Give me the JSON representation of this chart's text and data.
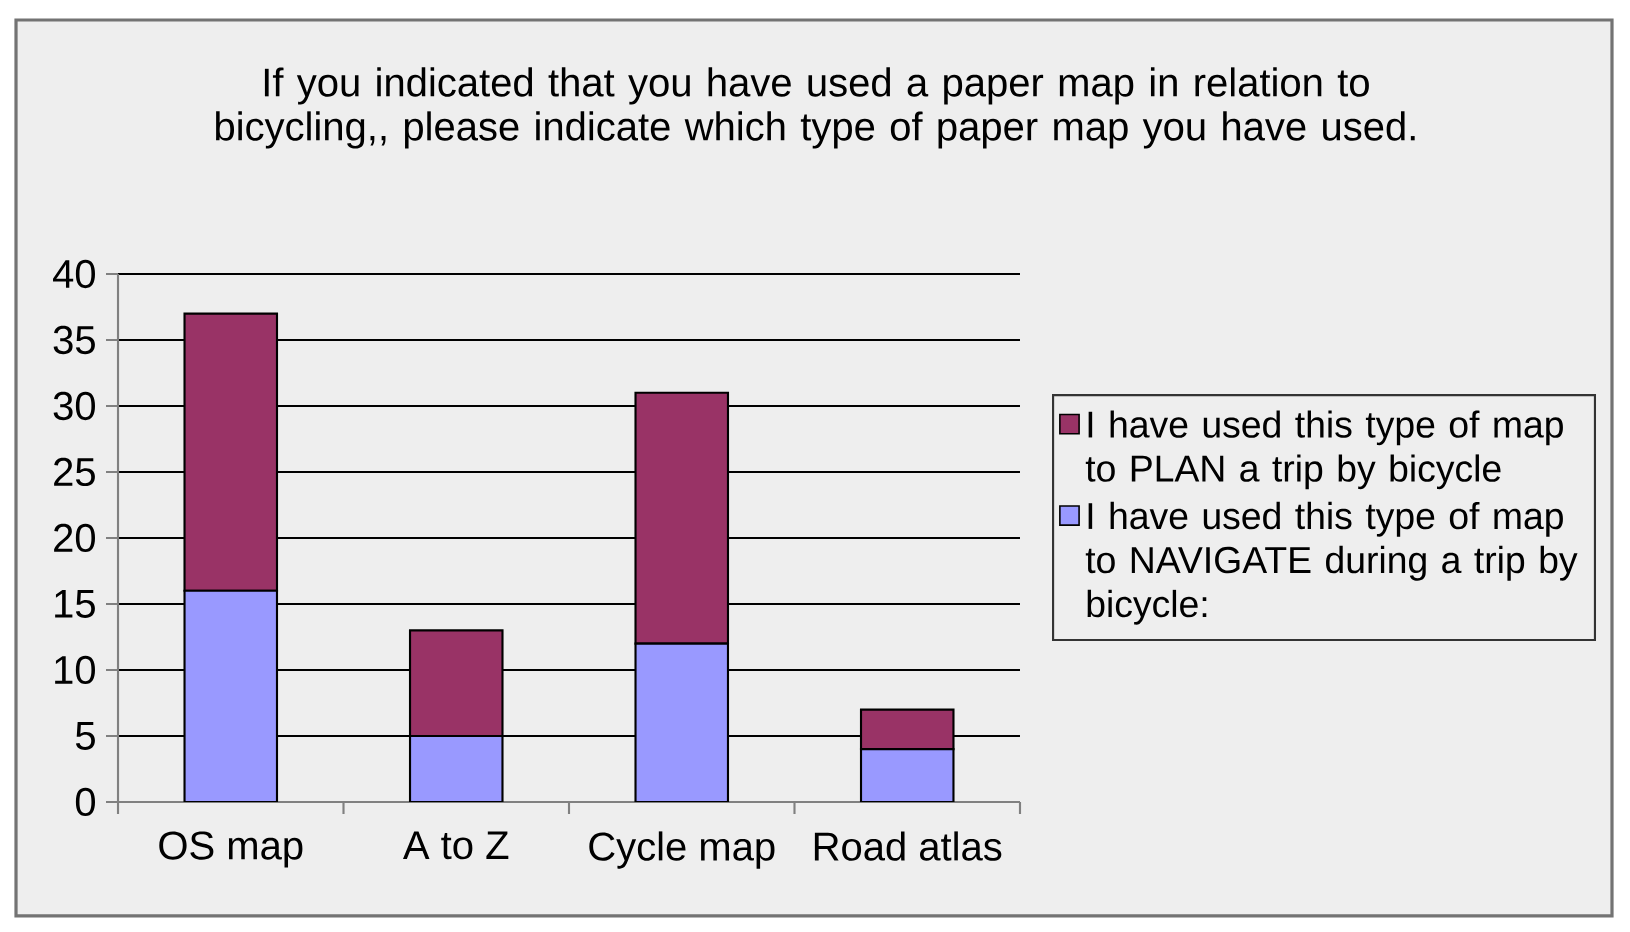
{
  "chart_data": {
    "type": "bar",
    "title": "If you indicated that you have used a paper map in relation to bicycling,, please indicate which type of paper map you have used.",
    "categories": [
      "OS map",
      "A to Z",
      "Cycle map",
      "Road atlas"
    ],
    "stacked": true,
    "series": [
      {
        "name": "I have used this type of map to NAVIGATE during a trip by bicycle:",
        "color": "#9999ff",
        "values": [
          16,
          5,
          12,
          4
        ]
      },
      {
        "name": "I have used this type of map to PLAN a trip by bicycle",
        "color": "#993366",
        "values": [
          21,
          8,
          19,
          3
        ]
      }
    ],
    "ylim": [
      0,
      40
    ],
    "yticks": [
      0,
      5,
      10,
      15,
      20,
      25,
      30,
      35,
      40
    ],
    "grid": "y",
    "legend": "right"
  }
}
